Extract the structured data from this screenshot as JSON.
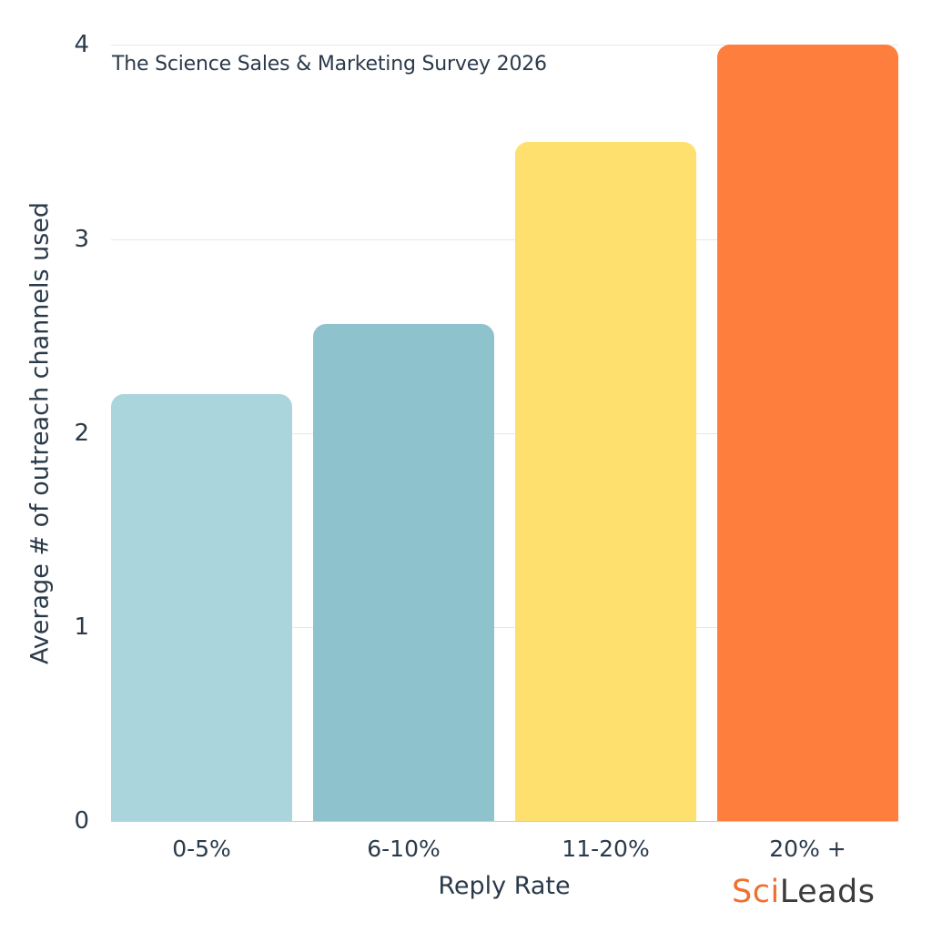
{
  "chart_data": {
    "type": "bar",
    "title": "The Science Sales & Marketing Survey 2026",
    "xlabel": "Reply Rate",
    "ylabel": "Average # of outreach channels used",
    "categories": [
      "0-5%",
      "6-10%",
      "11-20%",
      "20% +"
    ],
    "values": [
      2.2,
      2.56,
      3.5,
      4.0
    ],
    "colors": [
      "#ABD5DC",
      "#8EC3CD",
      "#FEE06E",
      "#FE7E3E"
    ],
    "ylim": [
      0,
      4
    ],
    "yticks": [
      "0",
      "1",
      "2",
      "3",
      "4"
    ],
    "grid": true,
    "legend": null
  },
  "logo": {
    "part1": "Sci",
    "part2": "Leads",
    "part1_color": "#F0702F",
    "part2_color": "#3C3C3C"
  }
}
